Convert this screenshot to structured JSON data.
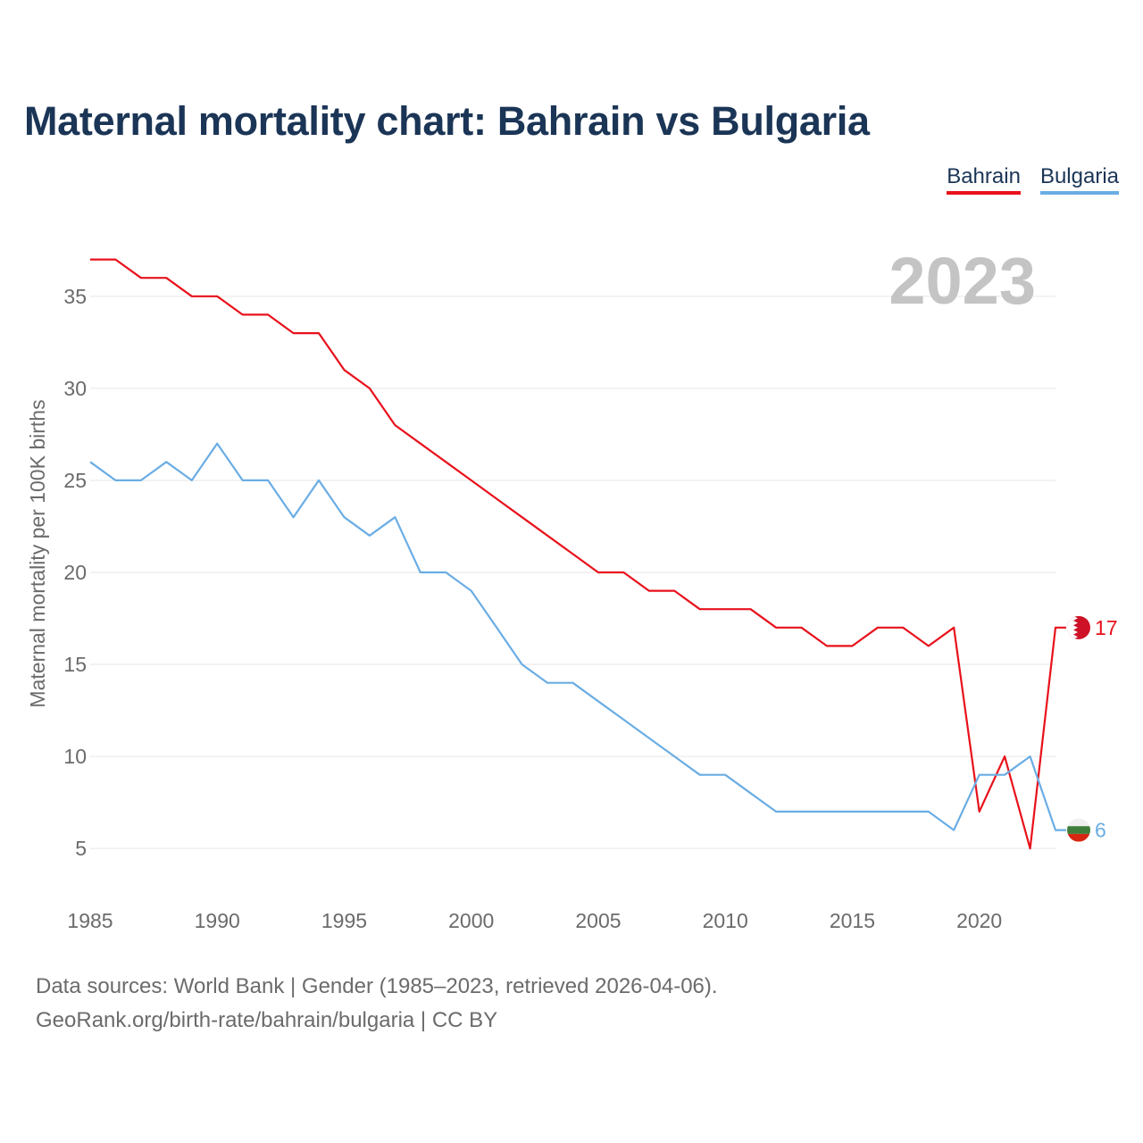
{
  "title": "Maternal mortality chart: Bahrain vs Bulgaria",
  "legend": [
    {
      "name": "Bahrain",
      "color": "#e8111b"
    },
    {
      "name": "Bulgaria",
      "color": "#6aade4"
    }
  ],
  "footer": {
    "line1": "Data sources: World Bank | Gender (1985–2023, retrieved 2026-04-06).",
    "line2": "GeoRank.org/birth-rate/bahrain/bulgaria | CC BY"
  },
  "chart_data": {
    "type": "line",
    "title": "Maternal mortality chart: Bahrain vs Bulgaria",
    "year_label": "2023",
    "xlabel": "",
    "ylabel": "Maternal mortality per 100K births",
    "xlim": [
      1985,
      2023
    ],
    "ylim": [
      2,
      38
    ],
    "xticks": [
      1985,
      1990,
      1995,
      2000,
      2005,
      2010,
      2015,
      2020
    ],
    "yticks": [
      5,
      10,
      15,
      20,
      25,
      30,
      35
    ],
    "grid": true,
    "x": [
      1985,
      1986,
      1987,
      1988,
      1989,
      1990,
      1991,
      1992,
      1993,
      1994,
      1995,
      1996,
      1997,
      1998,
      1999,
      2000,
      2001,
      2002,
      2003,
      2004,
      2005,
      2006,
      2007,
      2008,
      2009,
      2010,
      2011,
      2012,
      2013,
      2014,
      2015,
      2016,
      2017,
      2018,
      2019,
      2020,
      2021,
      2022,
      2023
    ],
    "series": [
      {
        "name": "Bahrain",
        "color": "#e8111b",
        "end_label": "17",
        "values": [
          37,
          37,
          36,
          36,
          35,
          35,
          34,
          34,
          33,
          33,
          31,
          30,
          28,
          27,
          26,
          25,
          24,
          23,
          22,
          21,
          20,
          20,
          19,
          19,
          18,
          18,
          18,
          17,
          17,
          16,
          16,
          17,
          17,
          16,
          17,
          7,
          10,
          5,
          17
        ]
      },
      {
        "name": "Bulgaria",
        "color": "#6aade4",
        "end_label": "6",
        "values": [
          26,
          25,
          25,
          26,
          25,
          27,
          25,
          25,
          23,
          25,
          23,
          22,
          23,
          20,
          20,
          19,
          17,
          15,
          14,
          14,
          13,
          12,
          11,
          10,
          9,
          9,
          8,
          7,
          7,
          7,
          7,
          7,
          7,
          7,
          6,
          9,
          9,
          10,
          6
        ]
      }
    ]
  }
}
